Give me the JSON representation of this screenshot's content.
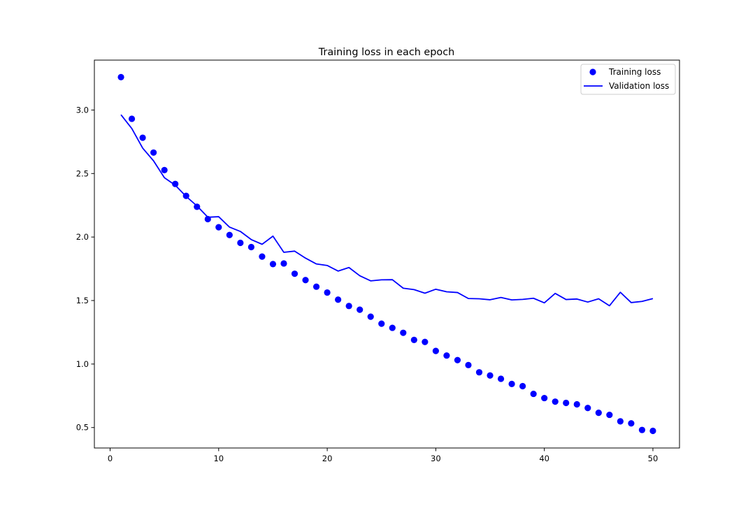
{
  "chart_data": {
    "type": "line",
    "title": "Training loss in each epoch",
    "xlabel": "",
    "ylabel": "",
    "xlim": [
      -1.45,
      52.45
    ],
    "ylim": [
      0.339,
      3.393
    ],
    "xticks": [
      0,
      10,
      20,
      30,
      40,
      50
    ],
    "xtick_labels": [
      "0",
      "10",
      "20",
      "30",
      "40",
      "50"
    ],
    "yticks": [
      0.5,
      1.0,
      1.5,
      2.0,
      2.5,
      3.0
    ],
    "ytick_labels": [
      "0.5",
      "1.0",
      "1.5",
      "2.0",
      "2.5",
      "3.0"
    ],
    "grid": false,
    "legend_position": "upper-right",
    "x": [
      1,
      2,
      3,
      4,
      5,
      6,
      7,
      8,
      9,
      10,
      11,
      12,
      13,
      14,
      15,
      16,
      17,
      18,
      19,
      20,
      21,
      22,
      23,
      24,
      25,
      26,
      27,
      28,
      29,
      30,
      31,
      32,
      33,
      34,
      35,
      36,
      37,
      38,
      39,
      40,
      41,
      42,
      43,
      44,
      45,
      46,
      47,
      48,
      49,
      50
    ],
    "series": [
      {
        "name": "Training loss",
        "style": "points",
        "color": "#0000ff",
        "values": [
          3.259,
          2.931,
          2.782,
          2.665,
          2.527,
          2.418,
          2.324,
          2.238,
          2.141,
          2.077,
          2.016,
          1.954,
          1.921,
          1.846,
          1.787,
          1.792,
          1.711,
          1.661,
          1.609,
          1.563,
          1.507,
          1.457,
          1.428,
          1.373,
          1.318,
          1.285,
          1.246,
          1.19,
          1.174,
          1.103,
          1.067,
          1.031,
          0.992,
          0.935,
          0.91,
          0.884,
          0.843,
          0.826,
          0.765,
          0.732,
          0.704,
          0.694,
          0.683,
          0.654,
          0.616,
          0.6,
          0.549,
          0.533,
          0.481,
          0.474
        ]
      },
      {
        "name": "Validation loss",
        "style": "line",
        "color": "#0000ff",
        "values": [
          2.963,
          2.854,
          2.7,
          2.6,
          2.467,
          2.408,
          2.32,
          2.245,
          2.156,
          2.16,
          2.078,
          2.044,
          1.98,
          1.943,
          2.007,
          1.88,
          1.889,
          1.834,
          1.788,
          1.776,
          1.732,
          1.76,
          1.695,
          1.655,
          1.663,
          1.664,
          1.597,
          1.586,
          1.558,
          1.589,
          1.569,
          1.563,
          1.516,
          1.514,
          1.506,
          1.524,
          1.505,
          1.509,
          1.518,
          1.482,
          1.556,
          1.508,
          1.512,
          1.488,
          1.514,
          1.459,
          1.565,
          1.484,
          1.493,
          1.515
        ]
      }
    ]
  }
}
